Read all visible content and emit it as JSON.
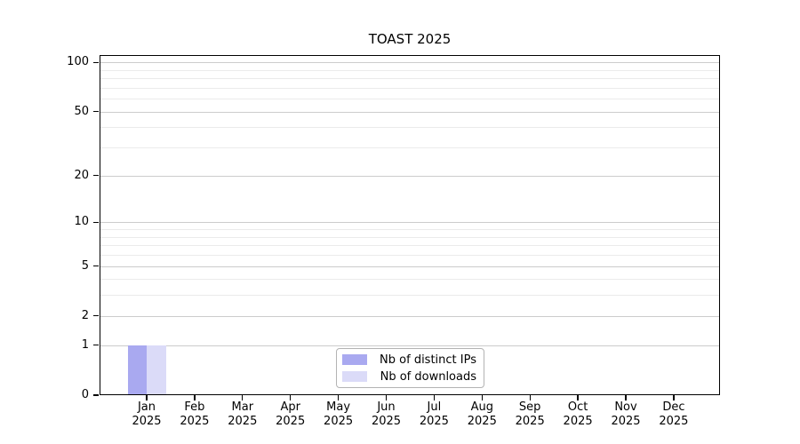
{
  "chart_data": {
    "type": "bar",
    "title": "TOAST 2025",
    "categories": [
      "Jan",
      "Feb",
      "Mar",
      "Apr",
      "May",
      "Jun",
      "Jul",
      "Aug",
      "Sep",
      "Oct",
      "Nov",
      "Dec"
    ],
    "x_tick_sublabel": "2025",
    "series": [
      {
        "name": "Nb of distinct IPs",
        "color": "#a9a9f0",
        "values": [
          1,
          0,
          0,
          0,
          0,
          0,
          0,
          0,
          0,
          0,
          0,
          0
        ]
      },
      {
        "name": "Nb of downloads",
        "color": "#dbdbf8",
        "values": [
          1,
          0,
          0,
          0,
          0,
          0,
          0,
          0,
          0,
          0,
          0,
          0
        ]
      }
    ],
    "y_axis": {
      "scale": "log1p",
      "major_ticks": [
        0,
        1,
        2,
        5,
        10,
        20,
        50,
        100
      ],
      "minor_ticks": [
        3,
        4,
        6,
        7,
        8,
        9,
        30,
        40,
        60,
        70,
        80,
        90
      ],
      "range_max": 110
    },
    "xlabel": "",
    "ylabel": "",
    "legend": {
      "position": "bottom-center",
      "entries": [
        "Nb of distinct IPs",
        "Nb of downloads"
      ]
    },
    "grid": {
      "orientation": "horizontal",
      "major_color": "#cccccc",
      "minor_color": "#ebebeb"
    },
    "axis_color": "#000000",
    "background_color": "#ffffff"
  }
}
